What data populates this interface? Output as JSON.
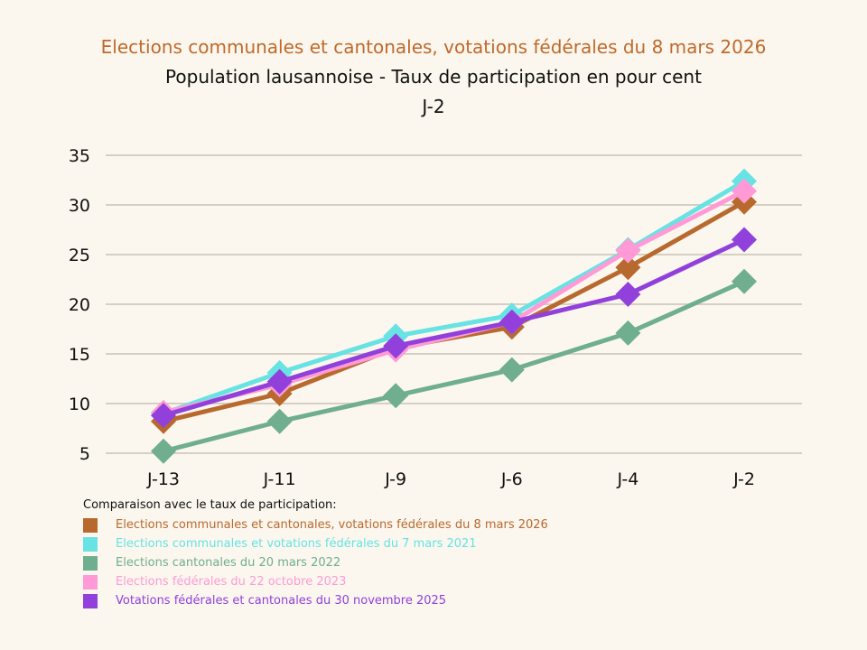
{
  "chart_data": {
    "type": "line",
    "title": "Elections communales et cantonales, votations fédérales du 8 mars 2026",
    "subtitle": "Population lausannoise - Taux de participation en pour cent",
    "subtitle2": "J-2",
    "categories": [
      "J-13",
      "J-11",
      "J-9",
      "J-6",
      "J-4",
      "J-2"
    ],
    "yticks": [
      5,
      10,
      15,
      20,
      25,
      30,
      35
    ],
    "ylim": [
      5,
      35
    ],
    "grid": true,
    "legend_title": "Comparaison avec le taux de participation:",
    "legend_position": "bottom-left",
    "series": [
      {
        "name": "Elections communales et cantonales, votations fédérales du 8 mars 2026",
        "color": "#b8692e",
        "values": [
          8.2,
          11.0,
          15.6,
          17.7,
          23.7,
          30.3
        ]
      },
      {
        "name": "Elections communales et votations fédérales du 7 mars 2021",
        "color": "#67e3e3",
        "values": [
          9.0,
          13.1,
          16.8,
          18.9,
          25.5,
          32.4
        ]
      },
      {
        "name": "Elections cantonales du 20 mars 2022",
        "color": "#6fae8f",
        "values": [
          5.2,
          8.2,
          10.8,
          13.4,
          17.1,
          22.3
        ]
      },
      {
        "name": "Elections fédérales du 22 octobre 2023",
        "color": "#ff9ad6",
        "values": [
          9.1,
          11.9,
          15.4,
          18.2,
          25.4,
          31.4
        ]
      },
      {
        "name": "Votations fédérales et cantonales du 30 novembre 2025",
        "color": "#9140dc",
        "values": [
          8.8,
          12.2,
          15.8,
          18.2,
          21.0,
          26.5
        ]
      }
    ]
  }
}
